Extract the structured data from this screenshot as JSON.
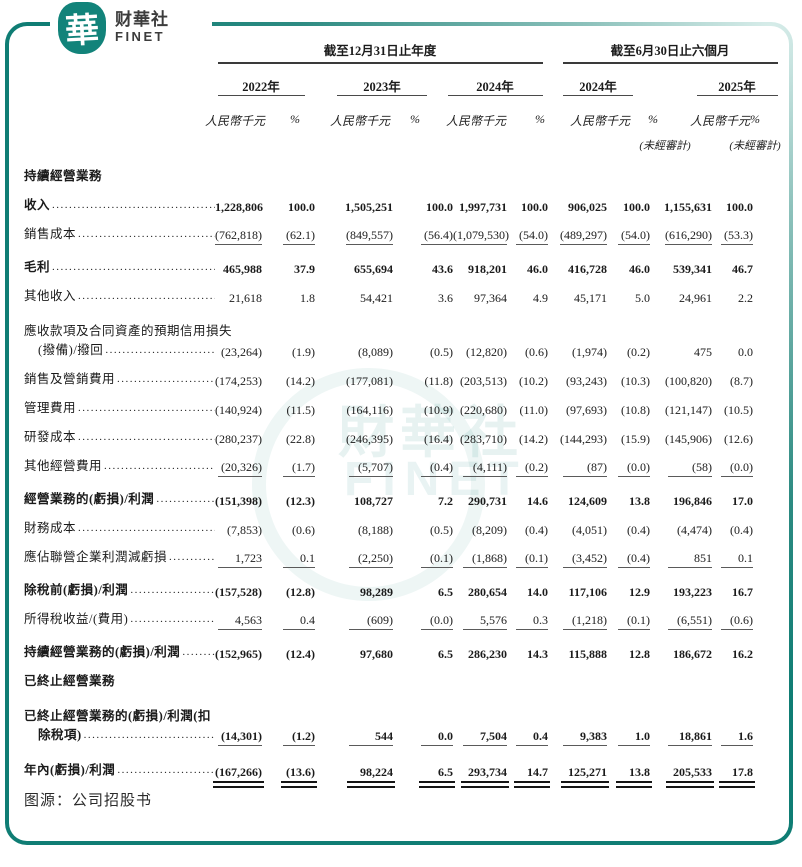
{
  "logo": {
    "seal_char": "華",
    "name": "财華社",
    "sub": "FINET"
  },
  "colors": {
    "accent_teal": "#0F7D74",
    "text": "#1B1B1B",
    "rule_gray": "#5A5A5A",
    "double_rule": "#151515"
  },
  "watermark": {
    "line1": "財華社",
    "line2": "FINET"
  },
  "source_caption": "图源：公司招股书",
  "table": {
    "group_headers": [
      {
        "label": "截至12月31日止年度"
      },
      {
        "label": "截至6月30日止六個月"
      }
    ],
    "year_headers": [
      "2022年",
      "2023年",
      "2024年",
      "2024年",
      "2025年"
    ],
    "unit_label": "人民幣千元",
    "pct_label": "%",
    "unaudited_label": "(未經審計)",
    "rows": [
      {
        "type": "section",
        "label": "持續經營業務"
      },
      {
        "type": "data",
        "bold": true,
        "dots": true,
        "label": "收入",
        "values": [
          "1,228,806",
          "100.0",
          "1,505,251",
          "100.0",
          "1,997,731",
          "100.0",
          "906,025",
          "100.0",
          "1,155,631",
          "100.0"
        ]
      },
      {
        "type": "data",
        "dots": true,
        "rule": "single",
        "label": "銷售成本",
        "values": [
          "(762,818)",
          "(62.1)",
          "(849,557)",
          "(56.4)",
          "(1,079,530)",
          "(54.0)",
          "(489,297)",
          "(54.0)",
          "(616,290)",
          "(53.3)"
        ]
      },
      {
        "type": "data",
        "bold": true,
        "dots": true,
        "label": "毛利",
        "values": [
          "465,988",
          "37.9",
          "655,694",
          "43.6",
          "918,201",
          "46.0",
          "416,728",
          "46.0",
          "539,341",
          "46.7"
        ]
      },
      {
        "type": "data",
        "dots": true,
        "label": "其他收入",
        "values": [
          "21,618",
          "1.8",
          "54,421",
          "3.6",
          "97,364",
          "4.9",
          "45,171",
          "5.0",
          "24,961",
          "2.2"
        ]
      },
      {
        "type": "data",
        "dots": true,
        "label": "應收款項及合同資產的預期信用損失",
        "label2": "(撥備)/撥回",
        "values": [
          "(23,264)",
          "(1.9)",
          "(8,089)",
          "(0.5)",
          "(12,820)",
          "(0.6)",
          "(1,974)",
          "(0.2)",
          "475",
          "0.0"
        ]
      },
      {
        "type": "data",
        "dots": true,
        "label": "銷售及營銷費用",
        "values": [
          "(174,253)",
          "(14.2)",
          "(177,081)",
          "(11.8)",
          "(203,513)",
          "(10.2)",
          "(93,243)",
          "(10.3)",
          "(100,820)",
          "(8.7)"
        ]
      },
      {
        "type": "data",
        "dots": true,
        "label": "管理費用",
        "values": [
          "(140,924)",
          "(11.5)",
          "(164,116)",
          "(10.9)",
          "(220,680)",
          "(11.0)",
          "(97,693)",
          "(10.8)",
          "(121,147)",
          "(10.5)"
        ]
      },
      {
        "type": "data",
        "dots": true,
        "label": "研發成本",
        "values": [
          "(280,237)",
          "(22.8)",
          "(246,395)",
          "(16.4)",
          "(283,710)",
          "(14.2)",
          "(144,293)",
          "(15.9)",
          "(145,906)",
          "(12.6)"
        ]
      },
      {
        "type": "data",
        "dots": true,
        "rule": "single",
        "label": "其他經營費用",
        "values": [
          "(20,326)",
          "(1.7)",
          "(5,707)",
          "(0.4)",
          "(4,111)",
          "(0.2)",
          "(87)",
          "(0.0)",
          "(58)",
          "(0.0)"
        ]
      },
      {
        "type": "data",
        "bold": true,
        "dots": true,
        "label": "經營業務的(虧損)/利潤",
        "values": [
          "(151,398)",
          "(12.3)",
          "108,727",
          "7.2",
          "290,731",
          "14.6",
          "124,609",
          "13.8",
          "196,846",
          "17.0"
        ]
      },
      {
        "type": "data",
        "dots": true,
        "label": "財務成本",
        "values": [
          "(7,853)",
          "(0.6)",
          "(8,188)",
          "(0.5)",
          "(8,209)",
          "(0.4)",
          "(4,051)",
          "(0.4)",
          "(4,474)",
          "(0.4)"
        ]
      },
      {
        "type": "data",
        "dots": true,
        "rule": "single",
        "label": "應佔聯營企業利潤減虧損",
        "values": [
          "1,723",
          "0.1",
          "(2,250)",
          "(0.1)",
          "(1,868)",
          "(0.1)",
          "(3,452)",
          "(0.4)",
          "851",
          "0.1"
        ]
      },
      {
        "type": "data",
        "bold": true,
        "dots": true,
        "label": "除稅前(虧損)/利潤",
        "values": [
          "(157,528)",
          "(12.8)",
          "98,289",
          "6.5",
          "280,654",
          "14.0",
          "117,106",
          "12.9",
          "193,223",
          "16.7"
        ]
      },
      {
        "type": "data",
        "dots": true,
        "rule": "single",
        "label": "所得稅收益/(費用)",
        "values": [
          "4,563",
          "0.4",
          "(609)",
          "(0.0)",
          "5,576",
          "0.3",
          "(1,218)",
          "(0.1)",
          "(6,551)",
          "(0.6)"
        ]
      },
      {
        "type": "data",
        "bold": true,
        "dots": true,
        "label": "持續經營業務的(虧損)/利潤",
        "values": [
          "(152,965)",
          "(12.4)",
          "97,680",
          "6.5",
          "286,230",
          "14.3",
          "115,888",
          "12.8",
          "186,672",
          "16.2"
        ]
      },
      {
        "type": "section",
        "label": "已終止經營業務"
      },
      {
        "type": "data",
        "bold": true,
        "dots": true,
        "rule": "single",
        "label": "已終止經營業務的(虧損)/利潤(扣",
        "label2": "除稅項)",
        "values": [
          "(14,301)",
          "(1.2)",
          "544",
          "0.0",
          "7,504",
          "0.4",
          "9,383",
          "1.0",
          "18,861",
          "1.6"
        ]
      },
      {
        "type": "data",
        "bold": true,
        "dots": true,
        "rule": "double",
        "label": "年內(虧損)/利潤",
        "values": [
          "(167,266)",
          "(13.6)",
          "98,224",
          "6.5",
          "293,734",
          "14.7",
          "125,271",
          "13.8",
          "205,533",
          "17.8"
        ]
      }
    ]
  }
}
